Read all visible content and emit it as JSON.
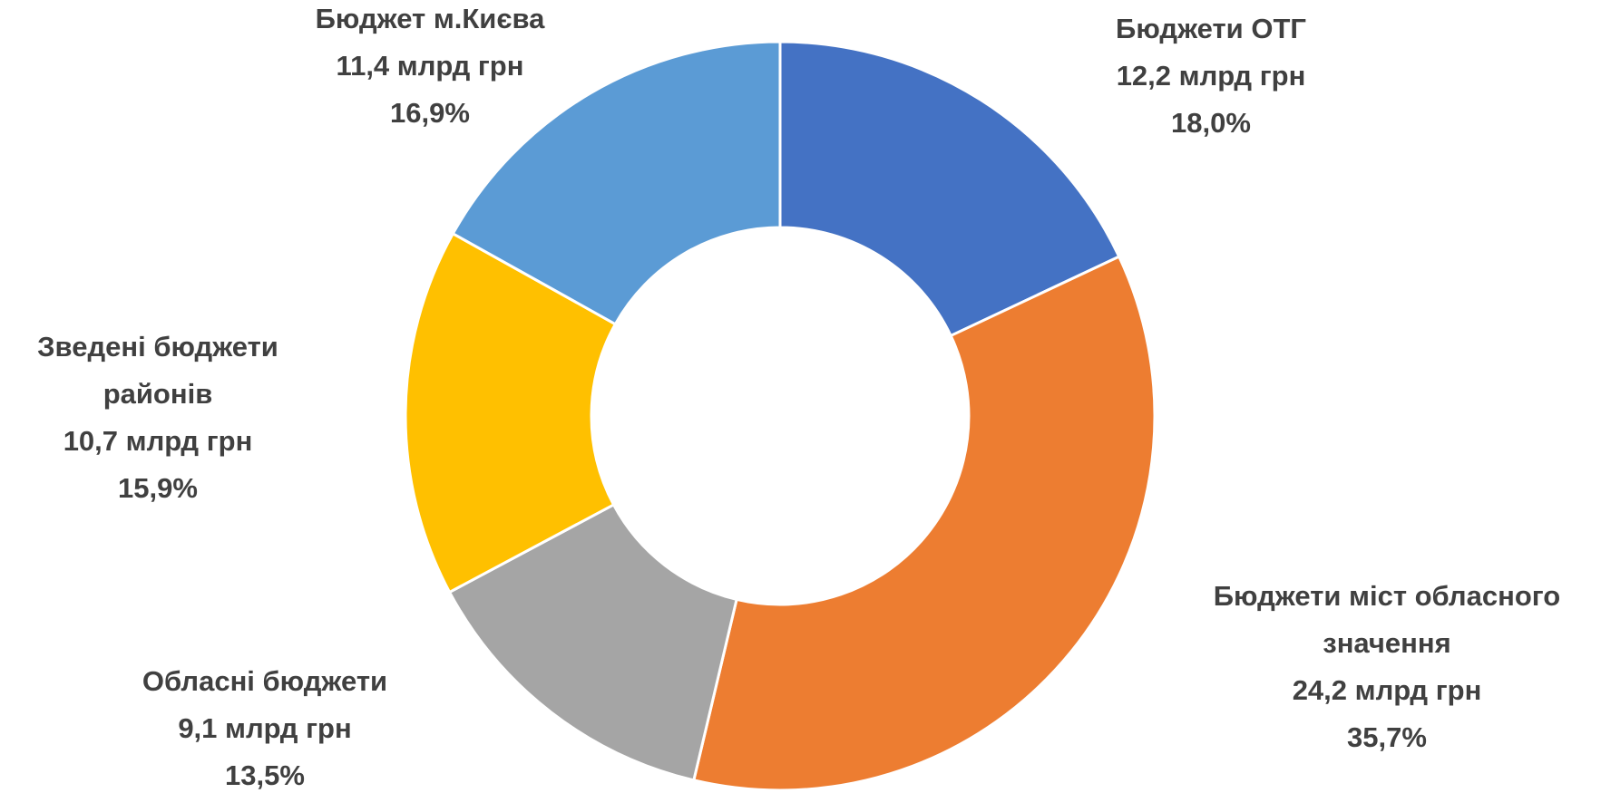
{
  "chart_data": {
    "type": "donut",
    "categories": [
      "Бюджети ОТГ",
      "Бюджети міст обласного значення",
      "Обласні бюджети",
      "Зведені бюджети районів",
      "Бюджет м.Києва"
    ],
    "amount_labels": [
      "12,2 млрд грн",
      "24,2 млрд грн",
      "9,1 млрд грн",
      "10,7 млрд грн",
      "11,4 млрд грн"
    ],
    "values": [
      18.0,
      35.7,
      13.5,
      15.9,
      16.9
    ],
    "value_labels": [
      "18,0%",
      "35,7%",
      "13,5%",
      "15,9%",
      "16,9%"
    ],
    "colors": [
      "#4472c4",
      "#ed7d31",
      "#a5a5a5",
      "#ffc000",
      "#5b9bd5"
    ]
  }
}
